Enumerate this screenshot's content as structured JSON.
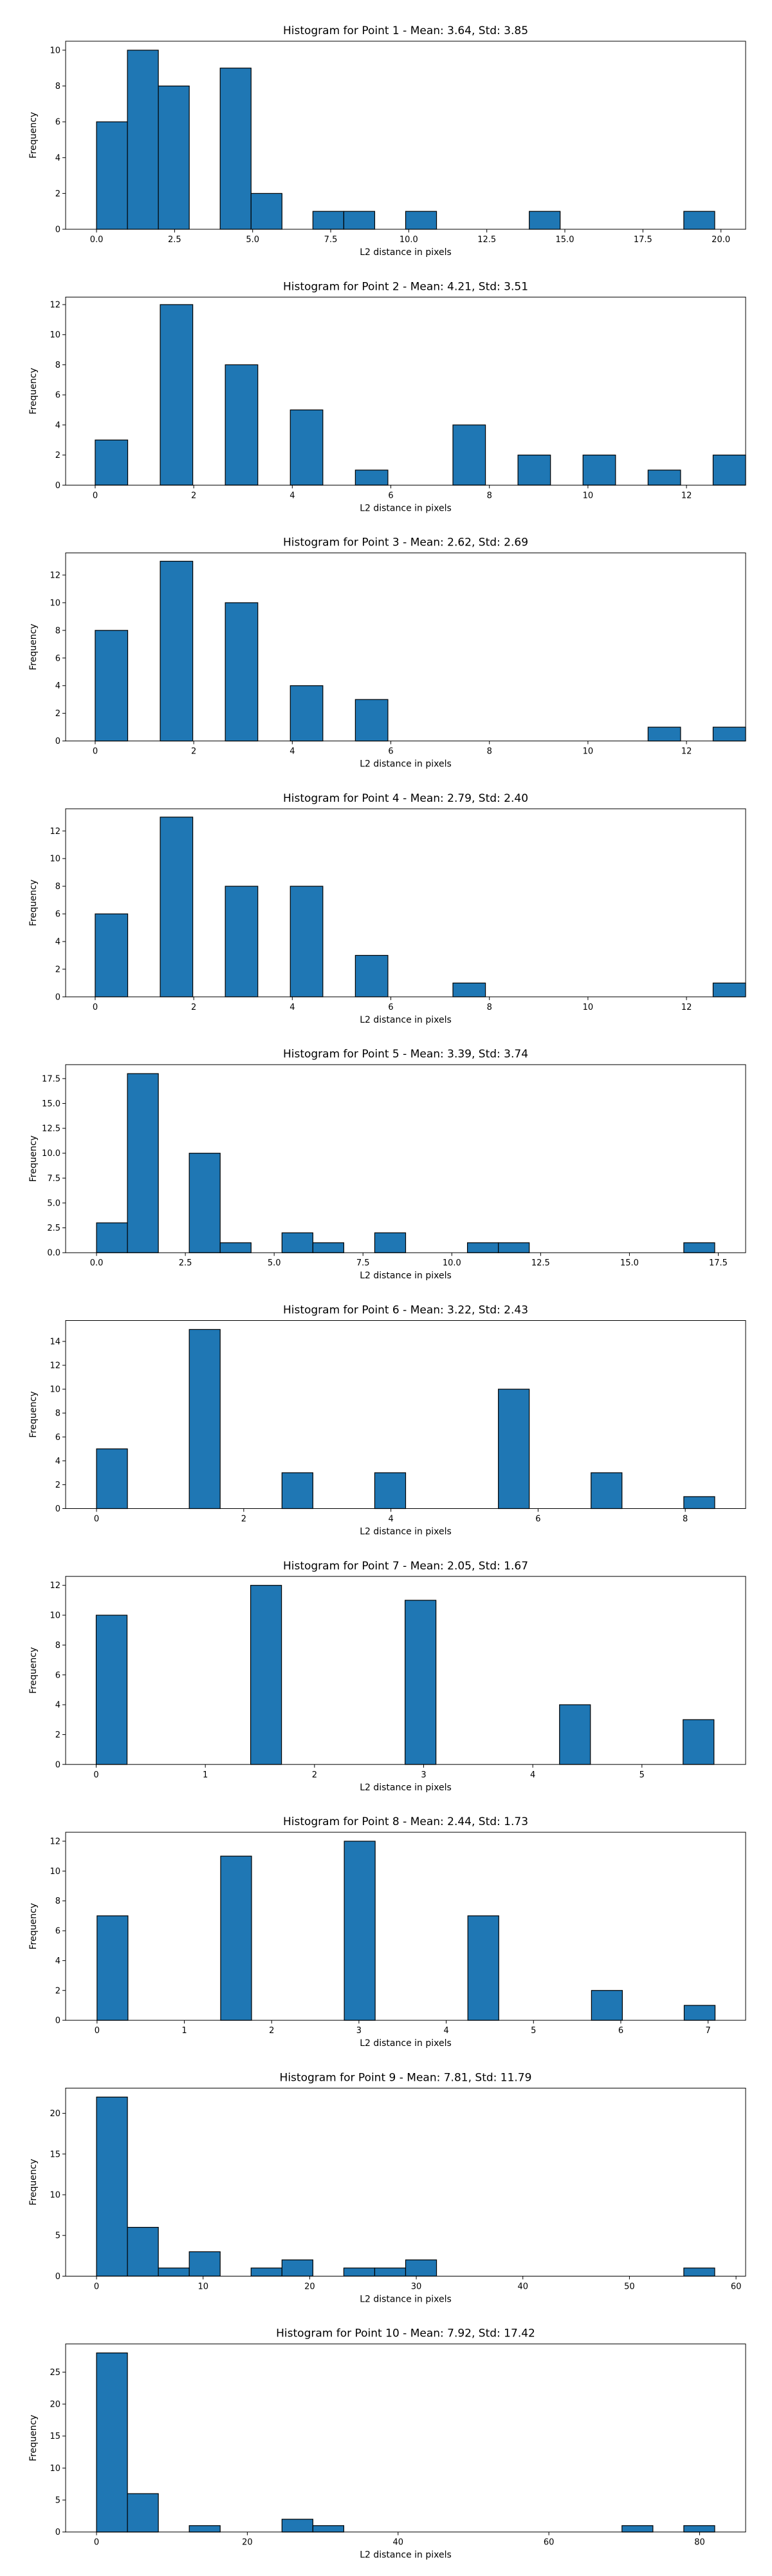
{
  "colors": {
    "bar": "#1f77b4",
    "edge": "#000000",
    "background": "#ffffff"
  },
  "chart_data": [
    {
      "type": "bar",
      "title": "Histogram for Point 1 - Mean: 3.64, Std: 3.85",
      "xlabel": "L2 distance in pixels",
      "ylabel": "Frequency",
      "xlim": [
        -0.99,
        20.79
      ],
      "ylim": [
        0,
        10.5
      ],
      "xticks": [
        0.0,
        2.5,
        5.0,
        7.5,
        10.0,
        12.5,
        15.0,
        17.5,
        20.0
      ],
      "xtick_labels": [
        "0.0",
        "2.5",
        "5.0",
        "7.5",
        "10.0",
        "12.5",
        "15.0",
        "17.5",
        "20.0"
      ],
      "yticks": [
        0,
        2,
        4,
        6,
        8,
        10
      ],
      "ytick_labels": [
        "0",
        "2",
        "4",
        "6",
        "8",
        "10"
      ],
      "bin_edges": [
        0,
        0.99,
        1.98,
        2.97,
        3.96,
        4.95,
        5.94,
        6.93,
        7.92,
        8.91,
        9.9,
        10.89,
        11.88,
        12.87,
        13.86,
        14.85,
        15.84,
        16.83,
        17.82,
        18.81,
        19.8
      ],
      "values": [
        6,
        10,
        8,
        0,
        9,
        2,
        0,
        1,
        1,
        0,
        1,
        0,
        0,
        0,
        1,
        0,
        0,
        0,
        0,
        1
      ]
    },
    {
      "type": "bar",
      "title": "Histogram for Point 2 - Mean: 4.21, Std: 3.51",
      "xlabel": "L2 distance in pixels",
      "ylabel": "Frequency",
      "xlim": [
        -0.6,
        13.2
      ],
      "ylim": [
        0,
        12.5
      ],
      "xticks": [
        0,
        2,
        4,
        6,
        8,
        10,
        12
      ],
      "xtick_labels": [
        "0",
        "2",
        "4",
        "6",
        "8",
        "10",
        "12"
      ],
      "yticks": [
        0,
        2,
        4,
        6,
        8,
        10,
        12
      ],
      "ytick_labels": [
        "0",
        "2",
        "4",
        "6",
        "8",
        "10",
        "12"
      ],
      "bin_edges": [
        0,
        0.66,
        1.32,
        1.98,
        2.64,
        3.3,
        3.96,
        4.62,
        5.28,
        5.94,
        6.6,
        7.26,
        7.92,
        8.58,
        9.24,
        9.9,
        10.56,
        11.22,
        11.88,
        12.54,
        13.2
      ],
      "values": [
        3,
        0,
        12,
        0,
        8,
        0,
        5,
        0,
        1,
        0,
        0,
        4,
        0,
        2,
        0,
        2,
        0,
        1,
        0,
        2
      ]
    },
    {
      "type": "bar",
      "title": "Histogram for Point 3 - Mean: 2.62, Std: 2.69",
      "xlabel": "L2 distance in pixels",
      "ylabel": "Frequency",
      "xlim": [
        -0.6,
        13.2
      ],
      "ylim": [
        0,
        13.6
      ],
      "xticks": [
        0,
        2,
        4,
        6,
        8,
        10,
        12
      ],
      "xtick_labels": [
        "0",
        "2",
        "4",
        "6",
        "8",
        "10",
        "12"
      ],
      "yticks": [
        0,
        2,
        4,
        6,
        8,
        10,
        12
      ],
      "ytick_labels": [
        "0",
        "2",
        "4",
        "6",
        "8",
        "10",
        "12"
      ],
      "bin_edges": [
        0,
        0.66,
        1.32,
        1.98,
        2.64,
        3.3,
        3.96,
        4.62,
        5.28,
        5.94,
        6.6,
        7.26,
        7.92,
        8.58,
        9.24,
        9.9,
        10.56,
        11.22,
        11.88,
        12.54,
        13.2
      ],
      "values": [
        8,
        0,
        13,
        0,
        10,
        0,
        4,
        0,
        3,
        0,
        0,
        0,
        0,
        0,
        0,
        0,
        0,
        1,
        0,
        1
      ]
    },
    {
      "type": "bar",
      "title": "Histogram for Point 4 - Mean: 2.79, Std: 2.40",
      "xlabel": "L2 distance in pixels",
      "ylabel": "Frequency",
      "xlim": [
        -0.6,
        13.2
      ],
      "ylim": [
        0,
        13.6
      ],
      "xticks": [
        0,
        2,
        4,
        6,
        8,
        10,
        12
      ],
      "xtick_labels": [
        "0",
        "2",
        "4",
        "6",
        "8",
        "10",
        "12"
      ],
      "yticks": [
        0,
        2,
        4,
        6,
        8,
        10,
        12
      ],
      "ytick_labels": [
        "0",
        "2",
        "4",
        "6",
        "8",
        "10",
        "12"
      ],
      "bin_edges": [
        0,
        0.66,
        1.32,
        1.98,
        2.64,
        3.3,
        3.96,
        4.62,
        5.28,
        5.94,
        6.6,
        7.26,
        7.92,
        8.58,
        9.24,
        9.9,
        10.56,
        11.22,
        11.88,
        12.54,
        13.2
      ],
      "values": [
        6,
        0,
        13,
        0,
        8,
        0,
        8,
        0,
        3,
        0,
        0,
        1,
        0,
        0,
        0,
        0,
        0,
        0,
        0,
        1
      ]
    },
    {
      "type": "bar",
      "title": "Histogram for Point 5 - Mean: 3.39, Std: 3.74",
      "xlabel": "L2 distance in pixels",
      "ylabel": "Frequency",
      "xlim": [
        -0.87,
        18.27
      ],
      "ylim": [
        0,
        18.9
      ],
      "xticks": [
        0.0,
        2.5,
        5.0,
        7.5,
        10.0,
        12.5,
        15.0,
        17.5
      ],
      "xtick_labels": [
        "0.0",
        "2.5",
        "5.0",
        "7.5",
        "10.0",
        "12.5",
        "15.0",
        "17.5"
      ],
      "yticks": [
        0.0,
        2.5,
        5.0,
        7.5,
        10.0,
        12.5,
        15.0,
        17.5
      ],
      "ytick_labels": [
        "0.0",
        "2.5",
        "5.0",
        "7.5",
        "10.0",
        "12.5",
        "15.0",
        "17.5"
      ],
      "bin_edges": [
        0,
        0.87,
        1.74,
        2.61,
        3.48,
        4.35,
        5.22,
        6.09,
        6.96,
        7.83,
        8.7,
        9.57,
        10.44,
        11.31,
        12.18,
        13.05,
        13.92,
        14.79,
        15.66,
        16.53,
        17.4
      ],
      "values": [
        3,
        18,
        0,
        10,
        1,
        0,
        2,
        1,
        0,
        2,
        0,
        0,
        1,
        1,
        0,
        0,
        0,
        0,
        0,
        1
      ]
    },
    {
      "type": "bar",
      "title": "Histogram for Point 6 - Mean: 3.22, Std: 2.43",
      "xlabel": "L2 distance in pixels",
      "ylabel": "Frequency",
      "xlim": [
        -0.42,
        8.82
      ],
      "ylim": [
        0,
        15.75
      ],
      "xticks": [
        0,
        2,
        4,
        6,
        8
      ],
      "xtick_labels": [
        "0",
        "2",
        "4",
        "6",
        "8"
      ],
      "yticks": [
        0,
        2,
        4,
        6,
        8,
        10,
        12,
        14
      ],
      "ytick_labels": [
        "0",
        "2",
        "4",
        "6",
        "8",
        "10",
        "12",
        "14"
      ],
      "bin_edges": [
        0,
        0.42,
        0.84,
        1.26,
        1.68,
        2.1,
        2.52,
        2.94,
        3.36,
        3.78,
        4.2,
        4.62,
        5.04,
        5.46,
        5.88,
        6.3,
        6.72,
        7.14,
        7.56,
        7.98,
        8.4
      ],
      "values": [
        5,
        0,
        0,
        15,
        0,
        0,
        3,
        0,
        0,
        3,
        0,
        0,
        0,
        10,
        0,
        0,
        3,
        0,
        0,
        1
      ]
    },
    {
      "type": "bar",
      "title": "Histogram for Point 7 - Mean: 2.05, Std: 1.67",
      "xlabel": "L2 distance in pixels",
      "ylabel": "Frequency",
      "xlim": [
        -0.28,
        5.95
      ],
      "ylim": [
        0,
        12.6
      ],
      "xticks": [
        0,
        1,
        2,
        3,
        4,
        5
      ],
      "xtick_labels": [
        "0",
        "1",
        "2",
        "3",
        "4",
        "5"
      ],
      "yticks": [
        0,
        2,
        4,
        6,
        8,
        10,
        12
      ],
      "ytick_labels": [
        "0",
        "2",
        "4",
        "6",
        "8",
        "10",
        "12"
      ],
      "bin_edges": [
        0,
        0.283,
        0.566,
        0.849,
        1.132,
        1.415,
        1.698,
        1.981,
        2.264,
        2.547,
        2.83,
        3.113,
        3.396,
        3.679,
        3.962,
        4.245,
        4.528,
        4.811,
        5.094,
        5.377,
        5.66
      ],
      "values": [
        10,
        0,
        0,
        0,
        0,
        12,
        0,
        0,
        0,
        0,
        11,
        0,
        0,
        0,
        0,
        4,
        0,
        0,
        0,
        3
      ]
    },
    {
      "type": "bar",
      "title": "Histogram for Point 8 - Mean: 2.44, Std: 1.73",
      "xlabel": "L2 distance in pixels",
      "ylabel": "Frequency",
      "xlim": [
        -0.36,
        7.43
      ],
      "ylim": [
        0,
        12.6
      ],
      "xticks": [
        0,
        1,
        2,
        3,
        4,
        5,
        6,
        7
      ],
      "xtick_labels": [
        "0",
        "1",
        "2",
        "3",
        "4",
        "5",
        "6",
        "7"
      ],
      "yticks": [
        0,
        2,
        4,
        6,
        8,
        10,
        12
      ],
      "ytick_labels": [
        "0",
        "2",
        "4",
        "6",
        "8",
        "10",
        "12"
      ],
      "bin_edges": [
        0,
        0.354,
        0.708,
        1.062,
        1.416,
        1.77,
        2.124,
        2.478,
        2.832,
        3.186,
        3.54,
        3.894,
        4.248,
        4.602,
        4.956,
        5.31,
        5.664,
        6.018,
        6.372,
        6.726,
        7.08
      ],
      "values": [
        7,
        0,
        0,
        0,
        11,
        0,
        0,
        0,
        12,
        0,
        0,
        0,
        7,
        0,
        0,
        0,
        2,
        0,
        0,
        1
      ]
    },
    {
      "type": "bar",
      "title": "Histogram for Point 9 - Mean: 7.81, Std: 11.79",
      "xlabel": "L2 distance in pixels",
      "ylabel": "Frequency",
      "xlim": [
        -2.9,
        60.9
      ],
      "ylim": [
        0,
        23.1
      ],
      "xticks": [
        0,
        10,
        20,
        30,
        40,
        50,
        60
      ],
      "xtick_labels": [
        "0",
        "10",
        "20",
        "30",
        "40",
        "50",
        "60"
      ],
      "yticks": [
        0,
        5,
        10,
        15,
        20
      ],
      "ytick_labels": [
        "0",
        "5",
        "10",
        "15",
        "20"
      ],
      "bin_edges": [
        0,
        2.9,
        5.8,
        8.7,
        11.6,
        14.5,
        17.4,
        20.3,
        23.2,
        26.1,
        29.0,
        31.9,
        34.8,
        37.7,
        40.6,
        43.5,
        46.4,
        49.3,
        52.2,
        55.1,
        58.0
      ],
      "values": [
        22,
        6,
        1,
        3,
        0,
        1,
        2,
        0,
        1,
        1,
        2,
        0,
        0,
        0,
        0,
        0,
        0,
        0,
        0,
        1
      ]
    },
    {
      "type": "bar",
      "title": "Histogram for Point 10 - Mean: 7.92, Std: 17.42",
      "xlabel": "L2 distance in pixels",
      "ylabel": "Frequency",
      "xlim": [
        -4.1,
        86.1
      ],
      "ylim": [
        0,
        29.4
      ],
      "xticks": [
        0,
        20,
        40,
        60,
        80
      ],
      "xtick_labels": [
        "0",
        "20",
        "40",
        "60",
        "80"
      ],
      "yticks": [
        0,
        5,
        10,
        15,
        20,
        25
      ],
      "ytick_labels": [
        "0",
        "5",
        "10",
        "15",
        "20",
        "25"
      ],
      "bin_edges": [
        0,
        4.1,
        8.2,
        12.3,
        16.4,
        20.5,
        24.6,
        28.7,
        32.8,
        36.9,
        41.0,
        45.1,
        49.2,
        53.3,
        57.4,
        61.5,
        65.6,
        69.7,
        73.8,
        77.9,
        82.0
      ],
      "values": [
        28,
        6,
        0,
        1,
        0,
        0,
        2,
        1,
        0,
        0,
        0,
        0,
        0,
        0,
        0,
        0,
        0,
        1,
        0,
        1
      ]
    }
  ]
}
